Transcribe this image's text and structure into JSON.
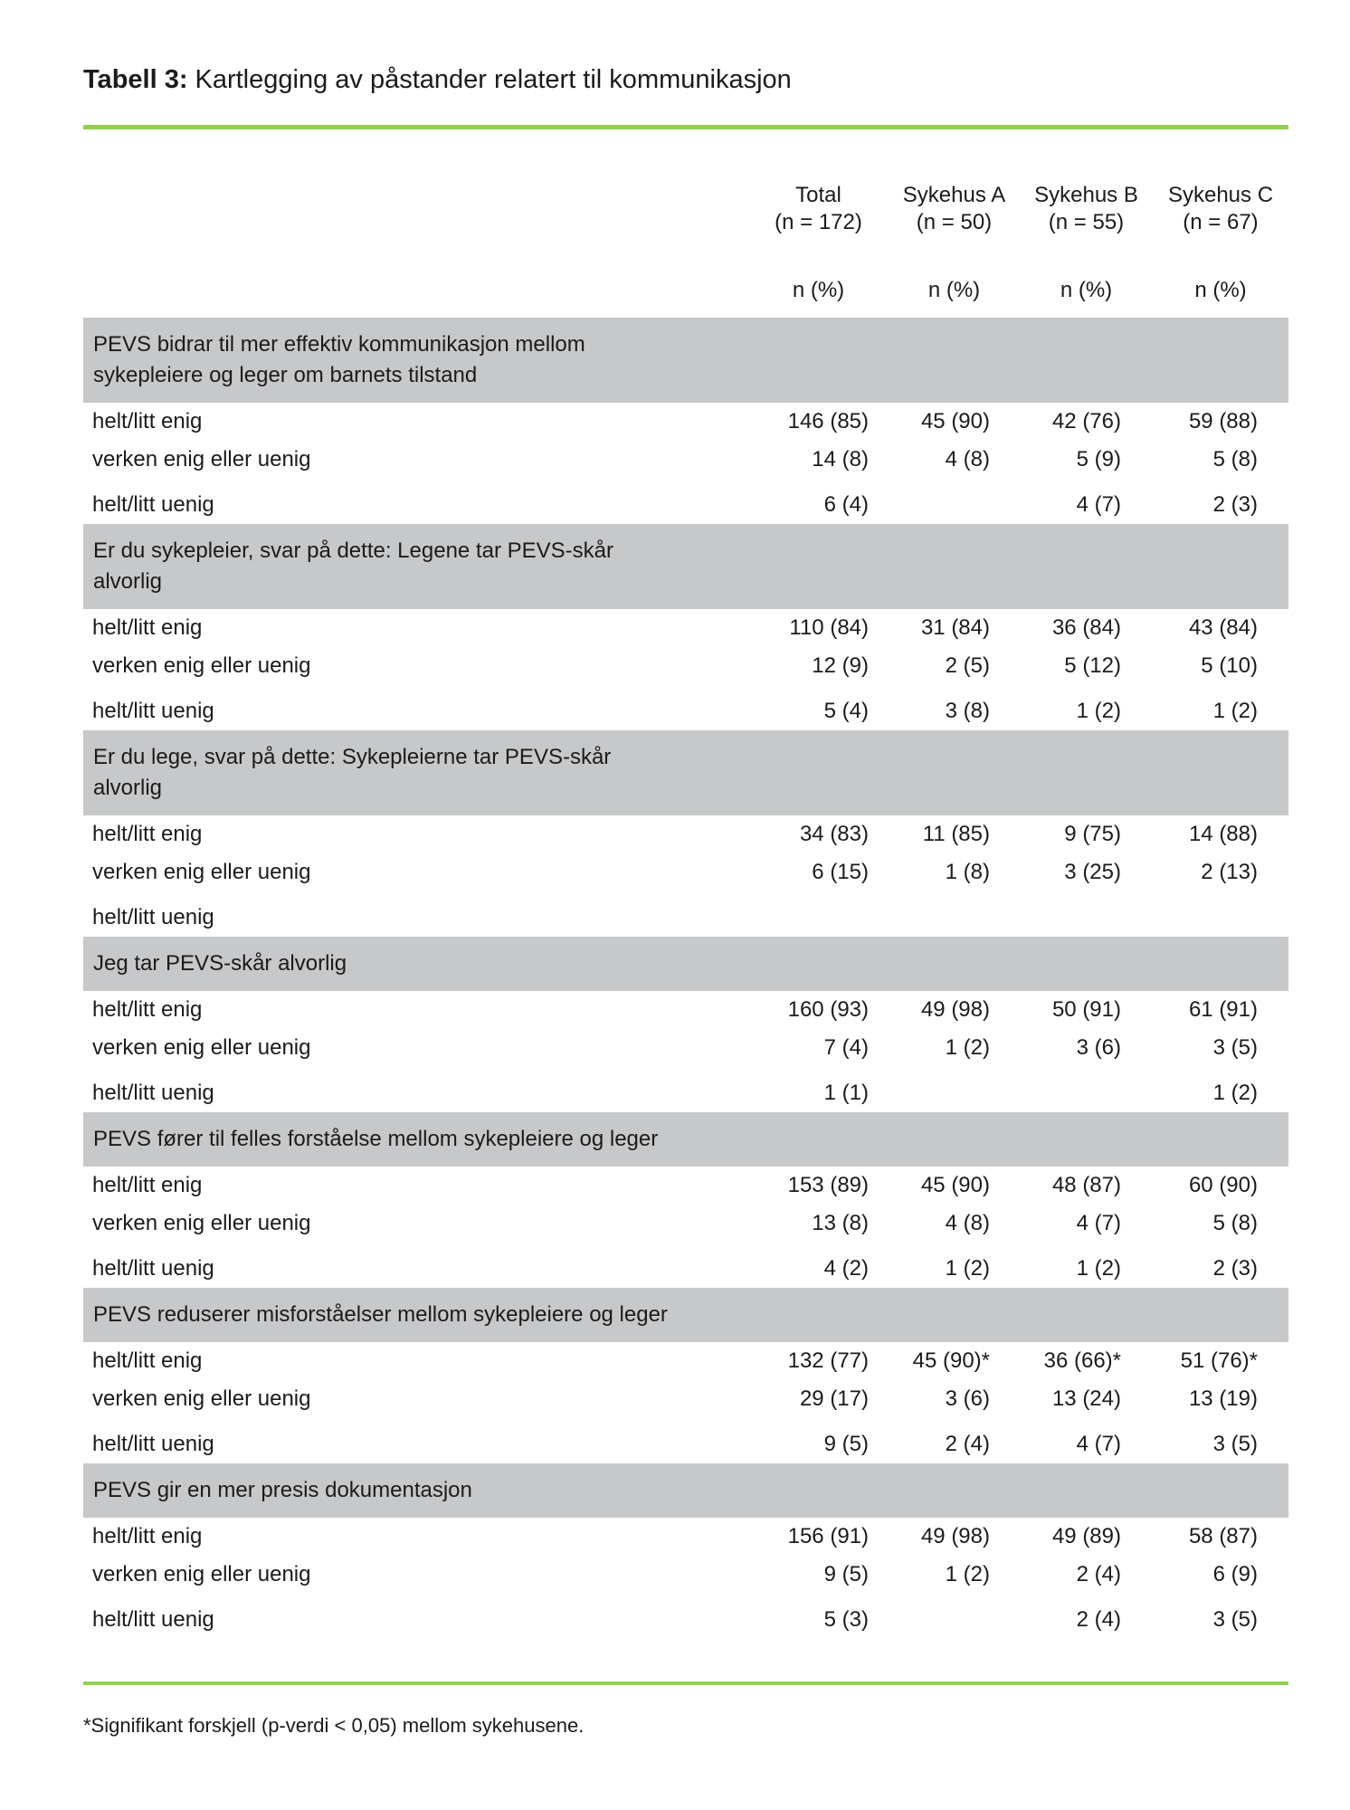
{
  "document": {
    "title_label": "Tabell 3:",
    "title_text": "Kartlegging av påstander relatert til kommunikasjon",
    "footnote": "*Signifikant forskjell (p-verdi < 0,05) mellom sykehusene.",
    "colors": {
      "accent_green": "#92d050",
      "section_gray": "#c7c8ca"
    }
  },
  "table": {
    "columns": [
      {
        "name": "Total",
        "n": "(n = 172)",
        "unit": "n (%)"
      },
      {
        "name": "Sykehus A",
        "n": "(n = 50)",
        "unit": "n (%)"
      },
      {
        "name": "Sykehus B",
        "n": "(n = 55)",
        "unit": "n (%)"
      },
      {
        "name": "Sykehus C",
        "n": "(n = 67)",
        "unit": "n (%)"
      }
    ],
    "sections": [
      {
        "header_lines": [
          "PEVS bidrar til mer effektiv kommunikasjon mellom",
          "sykepleiere og leger om barnets tilstand"
        ],
        "rows": [
          {
            "label": "helt/litt enig",
            "values": [
              "146 (85)",
              "45 (90)",
              "42 (76)",
              "59 (88)"
            ]
          },
          {
            "label": "verken enig eller uenig",
            "values": [
              "14 (8)",
              "4 (8)",
              "5 (9)",
              "5 (8)"
            ]
          },
          {
            "label": "helt/litt uenig",
            "values": [
              "6 (4)",
              "",
              "4 (7)",
              "2 (3)"
            ]
          }
        ]
      },
      {
        "header_lines": [
          "Er du sykepleier, svar på dette: Legene tar PEVS-skår",
          "alvorlig"
        ],
        "rows": [
          {
            "label": "helt/litt enig",
            "values": [
              "110 (84)",
              "31 (84)",
              "36 (84)",
              "43 (84)"
            ]
          },
          {
            "label": "verken enig eller uenig",
            "values": [
              "12 (9)",
              "2 (5)",
              "5 (12)",
              "5 (10)"
            ]
          },
          {
            "label": "helt/litt uenig",
            "values": [
              "5 (4)",
              "3 (8)",
              "1 (2)",
              "1 (2)"
            ]
          }
        ]
      },
      {
        "header_lines": [
          "Er du lege, svar på dette: Sykepleierne tar PEVS-skår",
          "alvorlig"
        ],
        "rows": [
          {
            "label": "helt/litt enig",
            "values": [
              "34 (83)",
              "11 (85)",
              "9 (75)",
              "14 (88)"
            ]
          },
          {
            "label": "verken enig eller uenig",
            "values": [
              "6 (15)",
              "1 (8)",
              "3 (25)",
              "2 (13)"
            ]
          },
          {
            "label": "helt/litt uenig",
            "values": [
              "",
              "",
              "",
              ""
            ]
          }
        ]
      },
      {
        "header_lines": [
          "Jeg tar PEVS-skår alvorlig"
        ],
        "rows": [
          {
            "label": "helt/litt enig",
            "values": [
              "160 (93)",
              "49 (98)",
              "50 (91)",
              "61 (91)"
            ]
          },
          {
            "label": "verken enig eller uenig",
            "values": [
              "7 (4)",
              "1 (2)",
              "3 (6)",
              "3 (5)"
            ]
          },
          {
            "label": "helt/litt uenig",
            "values": [
              "1 (1)",
              "",
              "",
              "1 (2)"
            ]
          }
        ]
      },
      {
        "header_lines": [
          "PEVS fører til felles forståelse mellom sykepleiere og leger"
        ],
        "rows": [
          {
            "label": "helt/litt enig",
            "values": [
              "153 (89)",
              "45 (90)",
              "48 (87)",
              "60 (90)"
            ]
          },
          {
            "label": "verken enig eller uenig",
            "values": [
              "13 (8)",
              "4 (8)",
              "4 (7)",
              "5 (8)"
            ]
          },
          {
            "label": "helt/litt uenig",
            "values": [
              "4 (2)",
              "1 (2)",
              "1 (2)",
              "2 (3)"
            ]
          }
        ]
      },
      {
        "header_lines": [
          "PEVS reduserer misforståelser mellom sykepleiere og leger"
        ],
        "rows": [
          {
            "label": "helt/litt enig",
            "values": [
              "132 (77)",
              "45 (90)*",
              "36 (66)*",
              "51 (76)*"
            ]
          },
          {
            "label": "verken enig eller uenig",
            "values": [
              "29 (17)",
              "3 (6)",
              "13 (24)",
              "13 (19)"
            ]
          },
          {
            "label": "helt/litt uenig",
            "values": [
              "9 (5)",
              "2 (4)",
              "4 (7)",
              "3 (5)"
            ]
          }
        ]
      },
      {
        "header_lines": [
          "PEVS gir en mer presis dokumentasjon"
        ],
        "rows": [
          {
            "label": "helt/litt enig",
            "values": [
              "156 (91)",
              "49 (98)",
              "49 (89)",
              "58 (87)"
            ]
          },
          {
            "label": "verken enig eller uenig",
            "values": [
              "9 (5)",
              "1 (2)",
              "2 (4)",
              "6 (9)"
            ]
          },
          {
            "label": "helt/litt uenig",
            "values": [
              "5 (3)",
              "",
              "2 (4)",
              "3 (5)"
            ]
          }
        ]
      }
    ]
  }
}
